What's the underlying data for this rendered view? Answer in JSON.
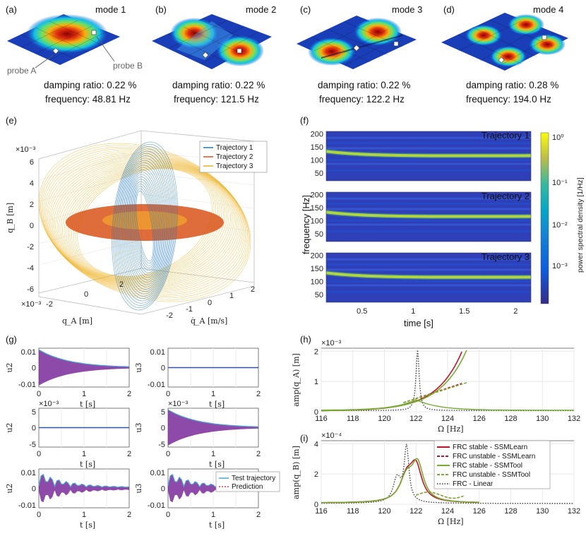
{
  "panel_labels": [
    "(a)",
    "(b)",
    "(c)",
    "(d)",
    "(e)",
    "(f)",
    "(g)",
    "(h)",
    "(i)"
  ],
  "modes": [
    {
      "title": "mode 1",
      "damping": "damping ratio: 0.22 %",
      "frequency": "frequency: 48.81 Hz"
    },
    {
      "title": "mode 2",
      "damping": "damping ratio: 0.22 %",
      "frequency": "frequency: 121.5 Hz"
    },
    {
      "title": "mode 3",
      "damping": "damping ratio: 0.22 %",
      "frequency": "frequency: 122.2 Hz"
    },
    {
      "title": "mode 4",
      "damping": "damping ratio: 0.28 %",
      "frequency": "frequency: 194.0 Hz"
    }
  ],
  "probes": {
    "a": "probe A",
    "b": "probe B"
  },
  "colors": {
    "traj1": "#1f77b4",
    "traj2": "#d95319",
    "traj3": "#edb120",
    "ssml": "#c0142b",
    "ssmt": "#77ac30",
    "linear": "#333333"
  },
  "chart_data": [
    {
      "id": "e",
      "type": "line3d",
      "legend": [
        "Trajectory 1",
        "Trajectory 2",
        "Trajectory 3"
      ],
      "zlabel": "q_B [m]",
      "xlabel": "q_A [m]",
      "ylabel": "q̇_A [m/s]",
      "zexp": "×10⁻³",
      "xexp": "×10⁻³",
      "zticks": [
        "6",
        "4",
        "2",
        "0",
        "-2",
        "-4",
        "-6"
      ],
      "xticks": [
        "-2",
        "0",
        "2"
      ],
      "yticks": [
        "-2",
        "-1",
        "0",
        "1",
        "2"
      ]
    },
    {
      "id": "f",
      "type": "heatmap",
      "titles": [
        "Trajectory 1",
        "Trajectory 2",
        "Trajectory 3"
      ],
      "ylabel": "frequency [Hz]",
      "xlabel": "time [s]",
      "yticks": [
        "200",
        "150",
        "100",
        "50"
      ],
      "xticks": [
        "0.5",
        "1",
        "1.5",
        "2"
      ],
      "colorbar_label": "power spectral density [1/Hz]",
      "colorbar_ticks": [
        "10⁰",
        "10⁻¹",
        "10⁻²",
        "10⁻³"
      ],
      "peak_hz": [
        125,
        125,
        125
      ]
    },
    {
      "id": "g",
      "type": "line",
      "xlabel": "t [s]",
      "ylabels": [
        "u2",
        "u3",
        "u2",
        "u3",
        "u2",
        "u3"
      ],
      "xticks": [
        "0",
        "1",
        "2"
      ],
      "rows": [
        {
          "left_ticks": [
            "0.01",
            "0",
            "-0.01"
          ],
          "right_ticks": [
            "0.01",
            "0",
            "-0.01"
          ],
          "left_exp": "",
          "right_exp": ""
        },
        {
          "left_ticks": [
            "5",
            "0",
            "-5"
          ],
          "right_ticks": [
            "5",
            "0",
            "-5"
          ],
          "left_exp": "×10⁻³",
          "right_exp": "×10⁻³"
        },
        {
          "left_ticks": [
            "0.01",
            "0",
            "-0.01"
          ],
          "right_ticks": [
            "0.01",
            "0",
            "-0.01"
          ],
          "left_exp": "",
          "right_exp": ""
        }
      ],
      "legend": [
        "Test trajectory",
        "Prediction"
      ]
    },
    {
      "id": "h",
      "type": "line",
      "ylabel": "amp(q_A) [m]",
      "xlabel": "Ω [Hz]",
      "yexp": "×10⁻³",
      "xticks": [
        "116",
        "118",
        "120",
        "122",
        "124",
        "126",
        "128",
        "130",
        "132"
      ],
      "yticks": [
        "2",
        "1",
        "0"
      ],
      "xlim": [
        116,
        132
      ],
      "ylim": [
        0,
        2.1
      ]
    },
    {
      "id": "i",
      "type": "line",
      "ylabel": "amp(q_B) [m]",
      "xlabel": "Ω [Hz]",
      "yexp": "×10⁻⁴",
      "xticks": [
        "116",
        "118",
        "120",
        "122",
        "124",
        "126",
        "128",
        "130",
        "132"
      ],
      "yticks": [
        "4",
        "2",
        "0"
      ],
      "xlim": [
        116,
        132
      ],
      "ylim": [
        0,
        4.2
      ],
      "legend": [
        "FRC stable - SSMLearn",
        "FRC unstable - SSMLearn",
        "FRC stable - SSMTool",
        "FRC unstable - SSMTool",
        "FRC - Linear"
      ]
    }
  ]
}
